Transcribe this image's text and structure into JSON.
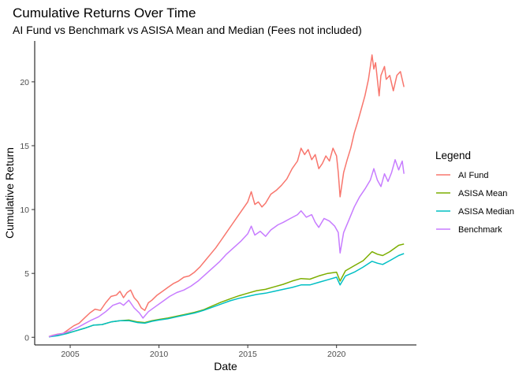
{
  "chart_data": {
    "type": "line",
    "title": "Cumulative Returns Over Time",
    "subtitle": "AI Fund vs Benchmark vs ASISA Mean and Median (Fees not included)",
    "xlabel": "Date",
    "ylabel": "Cumulative Return",
    "xlim": [
      2003,
      2024.5
    ],
    "ylim": [
      -0.6,
      23.2
    ],
    "x_ticks": [
      2005,
      2010,
      2015,
      2020
    ],
    "y_ticks": [
      0,
      5,
      10,
      15,
      20
    ],
    "grid": false,
    "legend": {
      "title": "Legend",
      "position": "right"
    },
    "series": [
      {
        "name": "AI Fund",
        "color": "#F8766D",
        "points": [
          [
            2003.8,
            0.05
          ],
          [
            2004.0,
            0.15
          ],
          [
            2004.3,
            0.25
          ],
          [
            2004.6,
            0.3
          ],
          [
            2004.9,
            0.6
          ],
          [
            2005.2,
            0.9
          ],
          [
            2005.5,
            1.1
          ],
          [
            2005.8,
            1.5
          ],
          [
            2006.1,
            1.9
          ],
          [
            2006.4,
            2.2
          ],
          [
            2006.7,
            2.1
          ],
          [
            2007.0,
            2.7
          ],
          [
            2007.3,
            3.2
          ],
          [
            2007.6,
            3.3
          ],
          [
            2007.8,
            3.6
          ],
          [
            2008.0,
            3.1
          ],
          [
            2008.2,
            3.5
          ],
          [
            2008.4,
            3.7
          ],
          [
            2008.6,
            3.1
          ],
          [
            2008.8,
            2.8
          ],
          [
            2009.0,
            2.3
          ],
          [
            2009.2,
            2.1
          ],
          [
            2009.4,
            2.7
          ],
          [
            2009.6,
            2.9
          ],
          [
            2009.9,
            3.3
          ],
          [
            2010.2,
            3.6
          ],
          [
            2010.5,
            3.9
          ],
          [
            2010.8,
            4.2
          ],
          [
            2011.1,
            4.4
          ],
          [
            2011.4,
            4.7
          ],
          [
            2011.7,
            4.8
          ],
          [
            2012.0,
            5.1
          ],
          [
            2012.3,
            5.5
          ],
          [
            2012.6,
            6.0
          ],
          [
            2012.9,
            6.5
          ],
          [
            2013.2,
            7.0
          ],
          [
            2013.5,
            7.6
          ],
          [
            2013.8,
            8.2
          ],
          [
            2014.1,
            8.8
          ],
          [
            2014.4,
            9.4
          ],
          [
            2014.7,
            10.0
          ],
          [
            2015.0,
            10.6
          ],
          [
            2015.2,
            11.4
          ],
          [
            2015.4,
            10.4
          ],
          [
            2015.6,
            10.6
          ],
          [
            2015.8,
            10.2
          ],
          [
            2016.0,
            10.5
          ],
          [
            2016.3,
            11.2
          ],
          [
            2016.6,
            11.5
          ],
          [
            2016.9,
            11.9
          ],
          [
            2017.2,
            12.4
          ],
          [
            2017.5,
            13.2
          ],
          [
            2017.8,
            13.8
          ],
          [
            2018.0,
            14.8
          ],
          [
            2018.2,
            14.3
          ],
          [
            2018.4,
            14.7
          ],
          [
            2018.6,
            13.9
          ],
          [
            2018.8,
            14.3
          ],
          [
            2019.0,
            13.2
          ],
          [
            2019.2,
            13.6
          ],
          [
            2019.4,
            14.2
          ],
          [
            2019.6,
            13.8
          ],
          [
            2019.8,
            14.8
          ],
          [
            2020.0,
            14.2
          ],
          [
            2020.1,
            12.9
          ],
          [
            2020.2,
            11.0
          ],
          [
            2020.4,
            12.9
          ],
          [
            2020.6,
            13.9
          ],
          [
            2020.8,
            14.8
          ],
          [
            2021.0,
            16.0
          ],
          [
            2021.2,
            16.9
          ],
          [
            2021.4,
            17.9
          ],
          [
            2021.6,
            18.9
          ],
          [
            2021.8,
            20.2
          ],
          [
            2022.0,
            22.1
          ],
          [
            2022.1,
            21.0
          ],
          [
            2022.2,
            21.5
          ],
          [
            2022.4,
            18.9
          ],
          [
            2022.5,
            20.5
          ],
          [
            2022.7,
            21.2
          ],
          [
            2022.8,
            20.2
          ],
          [
            2023.0,
            20.5
          ],
          [
            2023.2,
            19.3
          ],
          [
            2023.4,
            20.5
          ],
          [
            2023.6,
            20.8
          ],
          [
            2023.8,
            19.6
          ]
        ]
      },
      {
        "name": "ASISA Mean",
        "color": "#7CAE00",
        "points": [
          [
            2003.8,
            0.05
          ],
          [
            2004.3,
            0.15
          ],
          [
            2004.8,
            0.3
          ],
          [
            2005.3,
            0.5
          ],
          [
            2005.8,
            0.7
          ],
          [
            2006.3,
            0.95
          ],
          [
            2006.8,
            1.0
          ],
          [
            2007.3,
            1.2
          ],
          [
            2007.8,
            1.3
          ],
          [
            2008.3,
            1.35
          ],
          [
            2008.8,
            1.2
          ],
          [
            2009.2,
            1.15
          ],
          [
            2009.6,
            1.3
          ],
          [
            2010.0,
            1.4
          ],
          [
            2010.5,
            1.5
          ],
          [
            2011.0,
            1.65
          ],
          [
            2011.5,
            1.8
          ],
          [
            2012.0,
            1.95
          ],
          [
            2012.5,
            2.15
          ],
          [
            2013.0,
            2.45
          ],
          [
            2013.5,
            2.75
          ],
          [
            2014.0,
            3.0
          ],
          [
            2014.5,
            3.25
          ],
          [
            2015.0,
            3.45
          ],
          [
            2015.5,
            3.65
          ],
          [
            2016.0,
            3.75
          ],
          [
            2016.5,
            3.95
          ],
          [
            2017.0,
            4.15
          ],
          [
            2017.5,
            4.4
          ],
          [
            2018.0,
            4.6
          ],
          [
            2018.5,
            4.55
          ],
          [
            2019.0,
            4.8
          ],
          [
            2019.5,
            5.0
          ],
          [
            2020.0,
            5.1
          ],
          [
            2020.2,
            4.4
          ],
          [
            2020.5,
            5.2
          ],
          [
            2021.0,
            5.6
          ],
          [
            2021.5,
            6.0
          ],
          [
            2022.0,
            6.7
          ],
          [
            2022.3,
            6.5
          ],
          [
            2022.6,
            6.4
          ],
          [
            2023.0,
            6.7
          ],
          [
            2023.5,
            7.2
          ],
          [
            2023.8,
            7.3
          ]
        ]
      },
      {
        "name": "ASISA Median",
        "color": "#00BFC4",
        "points": [
          [
            2003.8,
            0.03
          ],
          [
            2004.3,
            0.12
          ],
          [
            2004.8,
            0.28
          ],
          [
            2005.3,
            0.5
          ],
          [
            2005.8,
            0.7
          ],
          [
            2006.3,
            0.95
          ],
          [
            2006.8,
            1.0
          ],
          [
            2007.3,
            1.2
          ],
          [
            2007.8,
            1.3
          ],
          [
            2008.3,
            1.3
          ],
          [
            2008.8,
            1.15
          ],
          [
            2009.2,
            1.1
          ],
          [
            2009.6,
            1.25
          ],
          [
            2010.0,
            1.35
          ],
          [
            2010.5,
            1.45
          ],
          [
            2011.0,
            1.6
          ],
          [
            2011.5,
            1.75
          ],
          [
            2012.0,
            1.9
          ],
          [
            2012.5,
            2.1
          ],
          [
            2013.0,
            2.35
          ],
          [
            2013.5,
            2.6
          ],
          [
            2014.0,
            2.85
          ],
          [
            2014.5,
            3.05
          ],
          [
            2015.0,
            3.2
          ],
          [
            2015.5,
            3.35
          ],
          [
            2016.0,
            3.45
          ],
          [
            2016.5,
            3.6
          ],
          [
            2017.0,
            3.75
          ],
          [
            2017.5,
            3.9
          ],
          [
            2018.0,
            4.1
          ],
          [
            2018.5,
            4.1
          ],
          [
            2019.0,
            4.3
          ],
          [
            2019.5,
            4.5
          ],
          [
            2020.0,
            4.7
          ],
          [
            2020.2,
            4.1
          ],
          [
            2020.5,
            4.8
          ],
          [
            2021.0,
            5.1
          ],
          [
            2021.5,
            5.5
          ],
          [
            2022.0,
            5.95
          ],
          [
            2022.3,
            5.8
          ],
          [
            2022.6,
            5.7
          ],
          [
            2023.0,
            6.0
          ],
          [
            2023.5,
            6.4
          ],
          [
            2023.8,
            6.55
          ]
        ]
      },
      {
        "name": "Benchmark",
        "color": "#C77CFF",
        "points": [
          [
            2003.8,
            0.05
          ],
          [
            2004.2,
            0.2
          ],
          [
            2004.6,
            0.3
          ],
          [
            2005.0,
            0.5
          ],
          [
            2005.4,
            0.75
          ],
          [
            2005.8,
            1.05
          ],
          [
            2006.2,
            1.35
          ],
          [
            2006.6,
            1.6
          ],
          [
            2007.0,
            2.0
          ],
          [
            2007.4,
            2.5
          ],
          [
            2007.8,
            2.7
          ],
          [
            2008.0,
            2.5
          ],
          [
            2008.3,
            2.9
          ],
          [
            2008.6,
            2.3
          ],
          [
            2008.9,
            1.9
          ],
          [
            2009.1,
            1.5
          ],
          [
            2009.4,
            2.0
          ],
          [
            2009.8,
            2.4
          ],
          [
            2010.2,
            2.8
          ],
          [
            2010.6,
            3.2
          ],
          [
            2011.0,
            3.5
          ],
          [
            2011.4,
            3.7
          ],
          [
            2011.8,
            4.0
          ],
          [
            2012.2,
            4.4
          ],
          [
            2012.6,
            4.9
          ],
          [
            2013.0,
            5.4
          ],
          [
            2013.4,
            5.9
          ],
          [
            2013.8,
            6.5
          ],
          [
            2014.2,
            7.0
          ],
          [
            2014.6,
            7.5
          ],
          [
            2015.0,
            8.1
          ],
          [
            2015.2,
            8.7
          ],
          [
            2015.4,
            8.0
          ],
          [
            2015.7,
            8.3
          ],
          [
            2016.0,
            7.9
          ],
          [
            2016.3,
            8.4
          ],
          [
            2016.7,
            8.8
          ],
          [
            2017.0,
            9.0
          ],
          [
            2017.4,
            9.3
          ],
          [
            2017.8,
            9.6
          ],
          [
            2018.0,
            9.9
          ],
          [
            2018.3,
            9.4
          ],
          [
            2018.6,
            9.6
          ],
          [
            2018.8,
            9.0
          ],
          [
            2019.0,
            8.6
          ],
          [
            2019.3,
            9.3
          ],
          [
            2019.6,
            9.1
          ],
          [
            2019.9,
            8.7
          ],
          [
            2020.1,
            8.2
          ],
          [
            2020.2,
            6.6
          ],
          [
            2020.4,
            8.2
          ],
          [
            2020.7,
            9.2
          ],
          [
            2021.0,
            10.2
          ],
          [
            2021.3,
            11.0
          ],
          [
            2021.6,
            11.6
          ],
          [
            2021.9,
            12.3
          ],
          [
            2022.1,
            13.2
          ],
          [
            2022.3,
            12.3
          ],
          [
            2022.5,
            11.8
          ],
          [
            2022.7,
            12.8
          ],
          [
            2022.9,
            12.2
          ],
          [
            2023.1,
            12.9
          ],
          [
            2023.3,
            13.9
          ],
          [
            2023.5,
            13.1
          ],
          [
            2023.7,
            13.8
          ],
          [
            2023.8,
            12.8
          ]
        ]
      }
    ]
  }
}
